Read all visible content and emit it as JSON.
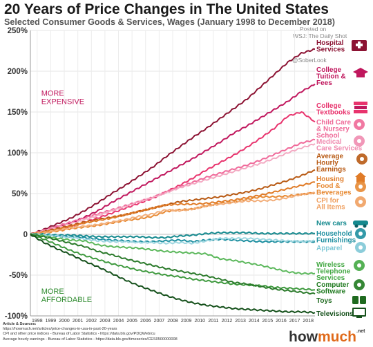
{
  "title": "20 Years of Price Changes in The United States",
  "subtitle": "Selected Consumer Goods & Services, Wages (January 1998 to December 2018)",
  "posted_on": "Posted on",
  "credit": "WSJ: The Daily Shot",
  "credit2": "@SoberLook",
  "brand": {
    "how": "how",
    "much": "much",
    "net": ".net"
  },
  "sources": {
    "heading": "Article & Sources:",
    "lines": [
      "https://howmuch.net/articles/price-changes-in-usa-in-past-20-years",
      "CPI and other price indices - Bureau of Labor Statistics - https://data.bls.gov/PDQWeb/cu",
      "Average hourly earnings - Bureau of Labor Statistics - https://data.bls.gov/timeseries/CES0500000008"
    ]
  },
  "chart_data": {
    "type": "line",
    "title": "20 Years of Price Changes in The United States",
    "subtitle": "Selected Consumer Goods & Services, Wages (January 1998 to December 2018)",
    "x": [
      1998,
      1999,
      2000,
      2001,
      2002,
      2003,
      2004,
      2005,
      2006,
      2007,
      2008,
      2009,
      2010,
      2011,
      2012,
      2013,
      2014,
      2015,
      2016,
      2017,
      2018,
      2019
    ],
    "x_tick_labels": [
      "1998",
      "1999",
      "2000",
      "2001",
      "2002",
      "2003",
      "2004",
      "2005",
      "2006",
      "2007",
      "2008",
      "2009",
      "2010",
      "2011",
      "2012",
      "2013",
      "2014",
      "2015",
      "2016",
      "2017",
      "2018"
    ],
    "xlim": [
      1998,
      2019
    ],
    "ylim": [
      -100,
      250
    ],
    "y_ticks": [
      -100,
      -50,
      0,
      50,
      100,
      150,
      200,
      250
    ],
    "y_tick_labels": [
      "-100%",
      "-50%",
      "0",
      "50%",
      "100%",
      "150%",
      "200%",
      "250%"
    ],
    "grid": true,
    "annotations": [
      {
        "text": "MORE\nEXPENSIVE",
        "color": "#c0175d",
        "year": 1998.8,
        "value": 170
      },
      {
        "text": "MORE\nAFFORDABLE",
        "color": "#2e8b2e",
        "year": 1998.8,
        "value": -73
      }
    ],
    "series": [
      {
        "name": "Hospital Services",
        "color": "#8c1333",
        "label_color": "#8c1333",
        "icon": "hospital-icon",
        "values": [
          0,
          6,
          13,
          20,
          29,
          39,
          50,
          60,
          71,
          82,
          95,
          107,
          119,
          130,
          142,
          154,
          166,
          181,
          196,
          211,
          222,
          227
        ]
      },
      {
        "name": "College Tuition & Fees",
        "color": "#c0175d",
        "label_color": "#c0175d",
        "icon": "graduation-cap-icon",
        "values": [
          0,
          4,
          9,
          14,
          21,
          29,
          39,
          48,
          57,
          66,
          75,
          84,
          93,
          103,
          113,
          124,
          133,
          143,
          153,
          163,
          175,
          184
        ]
      },
      {
        "name": "College Textbooks",
        "color": "#e8336d",
        "label_color": "#e8336d",
        "icon": "textbooks-icon",
        "values": [
          0,
          3,
          6,
          10,
          15,
          20,
          26,
          32,
          38,
          44,
          52,
          60,
          69,
          79,
          88,
          97,
          107,
          118,
          130,
          145,
          150,
          138
        ]
      },
      {
        "name": "Child Care & Nursery School",
        "color": "#f06a9a",
        "label_color": "#ef6a98",
        "icon": "child-icon",
        "values": [
          0,
          5,
          10,
          15,
          20,
          25,
          30,
          35,
          40,
          45,
          52,
          58,
          64,
          70,
          75,
          80,
          85,
          91,
          98,
          105,
          112,
          116
        ]
      },
      {
        "name": "Medical Care Services",
        "color": "#f3a9c2",
        "label_color": "#f08cb0",
        "icon": "medical-icon",
        "values": [
          0,
          4,
          8,
          13,
          18,
          23,
          29,
          34,
          40,
          45,
          51,
          57,
          62,
          67,
          72,
          77,
          82,
          87,
          93,
          100,
          106,
          111
        ]
      },
      {
        "name": "Average Hourly Earnings",
        "color": "#b85a14",
        "label_color": "#b85a14",
        "icon": "wages-icon",
        "values": [
          0,
          3,
          7,
          11,
          15,
          18,
          21,
          24,
          28,
          32,
          36,
          40,
          42,
          44,
          46,
          49,
          52,
          56,
          61,
          66,
          72,
          79
        ]
      },
      {
        "name": "Housing",
        "color": "#e07b27",
        "label_color": "#e07b27",
        "icon": "house-icon",
        "values": [
          0,
          3,
          6,
          10,
          14,
          17,
          20,
          24,
          28,
          32,
          36,
          37,
          37,
          38,
          40,
          42,
          45,
          48,
          52,
          56,
          60,
          64
        ]
      },
      {
        "name": "Food & Beverages",
        "color": "#e78a34",
        "label_color": "#e78a34",
        "icon": "food-icon",
        "values": [
          0,
          2,
          4,
          7,
          9,
          11,
          14,
          17,
          19,
          22,
          28,
          30,
          31,
          35,
          38,
          40,
          43,
          46,
          46,
          47,
          49,
          51
        ]
      },
      {
        "name": "CPI for All Items",
        "color": "#f2ae7a",
        "label_color": "#f0a060",
        "icon": "price-tag-icon",
        "values": [
          0,
          2,
          5,
          8,
          10,
          12,
          15,
          18,
          22,
          25,
          30,
          29,
          31,
          35,
          37,
          39,
          41,
          41,
          42,
          45,
          49,
          51
        ]
      },
      {
        "name": "New cars",
        "color": "#168a8f",
        "label_color": "#168a8f",
        "icon": "car-icon",
        "values": [
          0,
          0,
          -1,
          -1,
          -2,
          -3,
          -3,
          -3,
          -3,
          -4,
          -4,
          -2,
          -1,
          1,
          2,
          2,
          2,
          1,
          1,
          1,
          1,
          1
        ]
      },
      {
        "name": "Household Furnishings",
        "color": "#1e8fa0",
        "label_color": "#1e8fa0",
        "icon": "sofa-icon",
        "values": [
          0,
          -1,
          -2,
          -3,
          -4,
          -6,
          -7,
          -8,
          -9,
          -9,
          -8,
          -7,
          -9,
          -7,
          -6,
          -7,
          -8,
          -9,
          -9,
          -9,
          -9,
          -9
        ]
      },
      {
        "name": "Apparel",
        "color": "#9dd6e0",
        "label_color": "#7fc8d6",
        "icon": "shirt-icon",
        "values": [
          0,
          -1,
          -2,
          -4,
          -6,
          -8,
          -9,
          -9,
          -10,
          -10,
          -11,
          -10,
          -11,
          -8,
          -5,
          -5,
          -5,
          -6,
          -7,
          -8,
          -9,
          -8
        ]
      },
      {
        "name": "Wireless Telephone Services",
        "color": "#5cb85c",
        "label_color": "#43a843",
        "icon": "phone-icon",
        "values": [
          0,
          -2,
          -5,
          -7,
          -8,
          -13,
          -15,
          -16,
          -17,
          -19,
          -21,
          -22,
          -23,
          -24,
          -30,
          -32,
          -35,
          -38,
          -42,
          -46,
          -48,
          -48
        ]
      },
      {
        "name": "Computer Software",
        "color": "#3f9a3f",
        "label_color": "#1f7a1f",
        "icon": "computer-icon",
        "values": [
          0,
          -6,
          -13,
          -20,
          -26,
          -31,
          -36,
          -40,
          -44,
          -47,
          -50,
          -52,
          -55,
          -57,
          -59,
          -61,
          -62,
          -63,
          -65,
          -66,
          -67,
          -68
        ]
      },
      {
        "name": "Toys",
        "color": "#2b7a2b",
        "label_color": "#1f6a1f",
        "icon": "toys-icon",
        "values": [
          0,
          -3,
          -7,
          -11,
          -15,
          -21,
          -25,
          -30,
          -34,
          -38,
          -42,
          -45,
          -48,
          -51,
          -55,
          -59,
          -61,
          -64,
          -67,
          -69,
          -71,
          -73
        ]
      },
      {
        "name": "Televisions",
        "color": "#14501a",
        "label_color": "#14501a",
        "icon": "tv-icon",
        "values": [
          0,
          -10,
          -18,
          -25,
          -33,
          -40,
          -48,
          -56,
          -63,
          -69,
          -75,
          -80,
          -84,
          -87,
          -89,
          -91,
          -92,
          -93,
          -94,
          -95,
          -95,
          -96
        ]
      }
    ]
  }
}
